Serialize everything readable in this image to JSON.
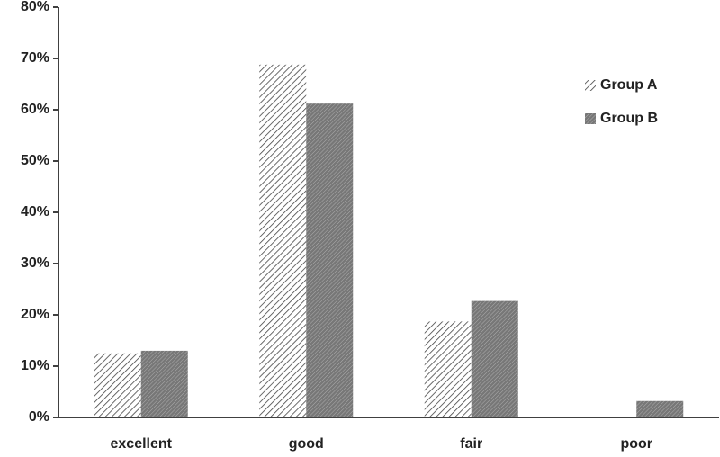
{
  "chart_data": {
    "type": "bar",
    "categories": [
      "excellent",
      "good",
      "fair",
      "poor"
    ],
    "series": [
      {
        "name": "Group A",
        "color": "#444444",
        "pattern": "diagonal",
        "values": [
          12.5,
          68.8,
          18.7,
          0
        ]
      },
      {
        "name": "Group B",
        "color": "#777777",
        "pattern": "dense",
        "values": [
          13,
          61.2,
          22.7,
          3.2
        ]
      }
    ],
    "ylim": [
      0,
      80
    ],
    "yticks": [
      {
        "value": 0,
        "label": "0%"
      },
      {
        "value": 10,
        "label": "10%"
      },
      {
        "value": 20,
        "label": "20%"
      },
      {
        "value": 30,
        "label": "30%"
      },
      {
        "value": 40,
        "label": "40%"
      },
      {
        "value": 50,
        "label": "50%"
      },
      {
        "value": 60,
        "label": "60%"
      },
      {
        "value": 70,
        "label": "70%"
      },
      {
        "value": 80,
        "label": "80%"
      }
    ],
    "grid": false,
    "legend": "upper-right"
  }
}
